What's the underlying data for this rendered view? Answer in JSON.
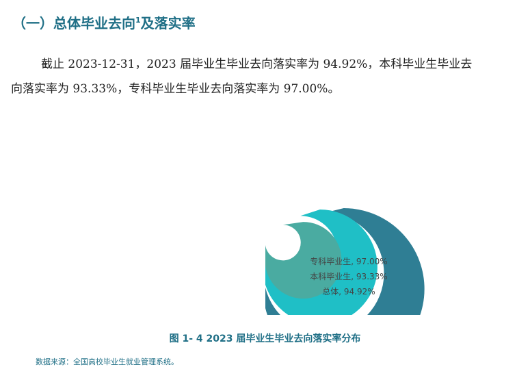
{
  "section": {
    "heading_text": "（一）总体毕业去向",
    "heading_sup": "1",
    "heading_tail": "及落实率"
  },
  "paragraph": {
    "line1": "截止 2023-12-31，2023 届毕业生毕业去向落实率为 94.92%，本科毕业生毕业去",
    "line2": "向落实率为 93.33%，专科毕业生毕业去向落实率为 97.00%。"
  },
  "chart_data": {
    "type": "radial-bar",
    "series": [
      {
        "name": "总体",
        "value": 94.92,
        "label": "总体, 94.92%",
        "color": "#2f7e94"
      },
      {
        "name": "本科毕业生",
        "value": 93.33,
        "label": "本科毕业生, 93.33%",
        "color": "#1fbfc6"
      },
      {
        "name": "专科毕业生",
        "value": 97.0,
        "label": "专科毕业生, 97.00%",
        "color": "#4aaba1"
      }
    ]
  },
  "caption": "图 1- 4  2023 届毕业生毕业去向落实率分布",
  "source": "数据来源：全国高校毕业生就业管理系统。"
}
